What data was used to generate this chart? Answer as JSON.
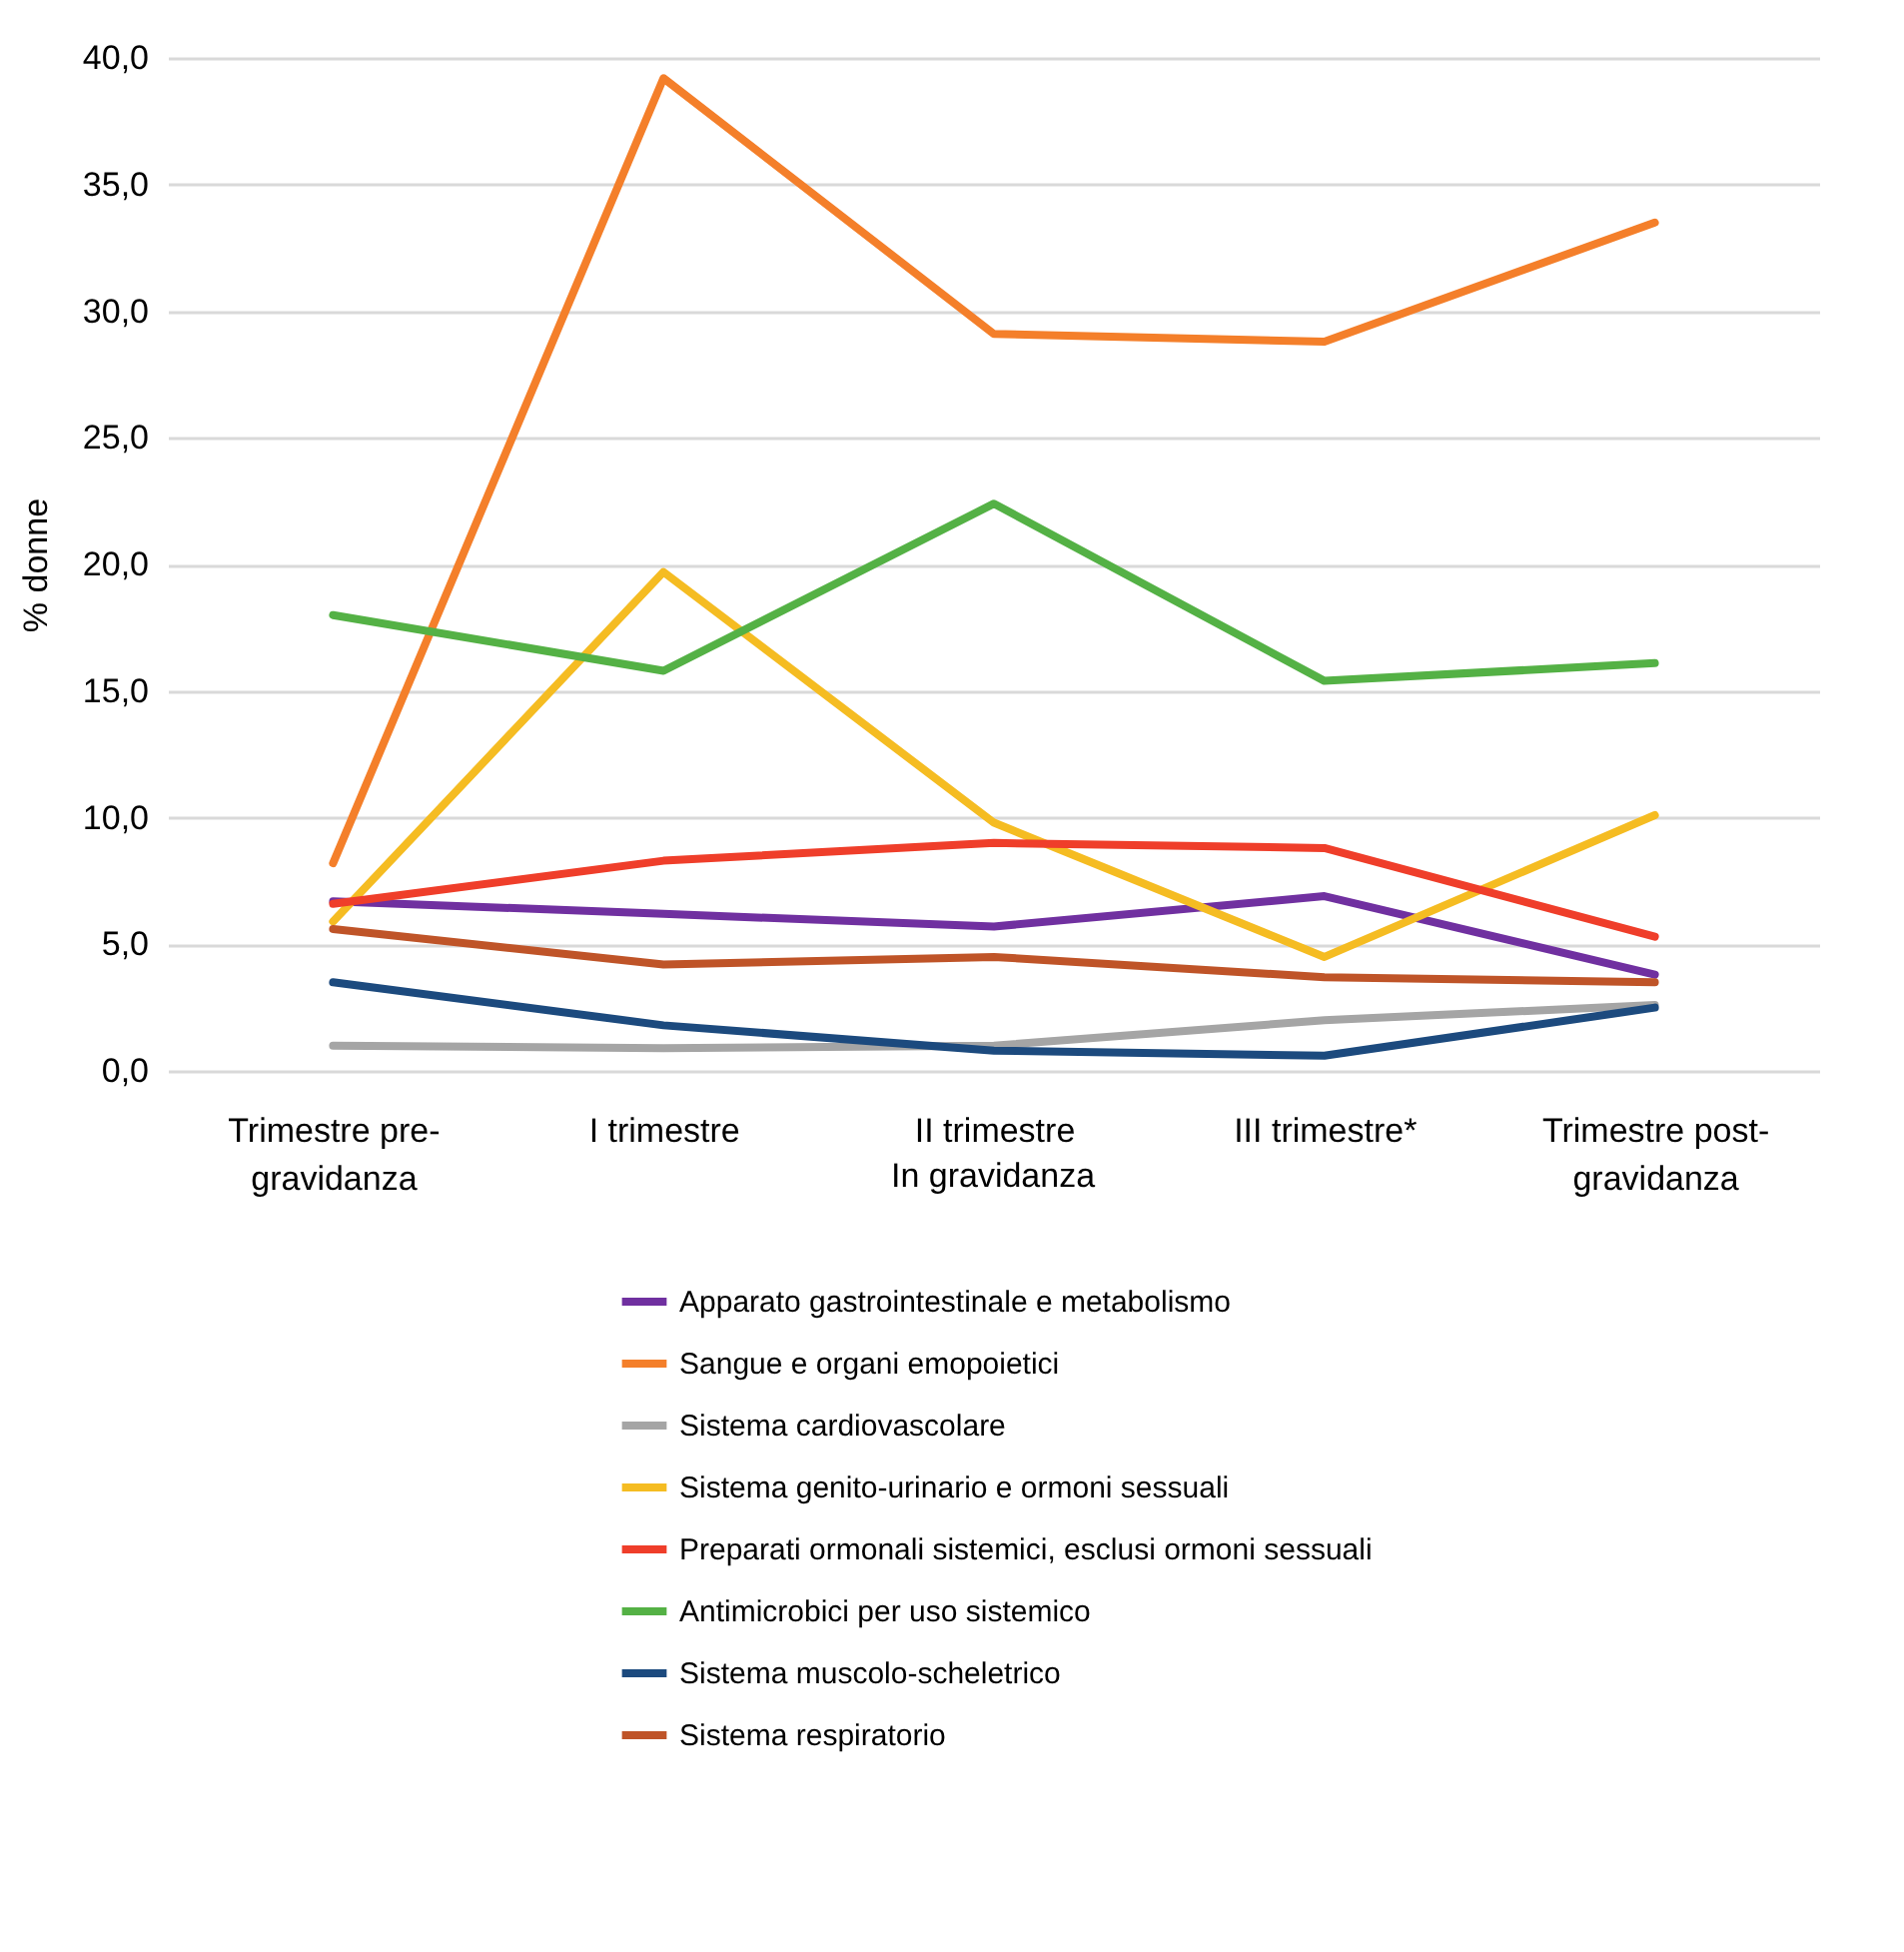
{
  "chart_data": {
    "type": "line",
    "ylabel": "% donne",
    "categories": [
      "Trimestre pre-gravidanza",
      "I trimestre",
      "II trimestre",
      "III trimestre*",
      "Trimestre post-gravidanza"
    ],
    "annotations": [
      "In gravidanza"
    ],
    "ylim": [
      0,
      40
    ],
    "yticks": [
      {
        "value": 0,
        "label": "0,0"
      },
      {
        "value": 5,
        "label": "5,0"
      },
      {
        "value": 10,
        "label": "10,0"
      },
      {
        "value": 15,
        "label": "15,0"
      },
      {
        "value": 20,
        "label": "20,0"
      },
      {
        "value": 25,
        "label": "25,0"
      },
      {
        "value": 30,
        "label": "30,0"
      },
      {
        "value": 35,
        "label": "35,0"
      },
      {
        "value": 40,
        "label": "40,0"
      }
    ],
    "grid": "y",
    "legend": "bottom",
    "marker": "none",
    "line_style": "solid",
    "series": [
      {
        "name": "Apparato gastrointestinale e metabolismo",
        "color": "#7030a0",
        "values": [
          6.7,
          6.2,
          5.7,
          6.9,
          3.8
        ]
      },
      {
        "name": "Sangue e organi emopoietici",
        "color": "#f47f2a",
        "values": [
          8.2,
          39.2,
          29.1,
          28.8,
          33.5
        ]
      },
      {
        "name": "Sistema cardiovascolare",
        "color": "#a5a5a5",
        "values": [
          1.0,
          0.9,
          1.0,
          2.0,
          2.6
        ]
      },
      {
        "name": "Sistema genito-urinario e ormoni sessuali",
        "color": "#f5bc22",
        "values": [
          5.9,
          19.7,
          9.8,
          4.5,
          10.1
        ]
      },
      {
        "name": "Preparati ormonali sistemici, esclusi ormoni sessuali",
        "color": "#ef3e2a",
        "values": [
          6.6,
          8.3,
          9.0,
          8.8,
          5.3
        ]
      },
      {
        "name": " Antimicrobici per uso sistemico",
        "color": "#54b145",
        "values": [
          18.0,
          15.8,
          22.4,
          15.4,
          16.1
        ]
      },
      {
        "name": "Sistema muscolo-scheletrico",
        "color": "#1c4a7e",
        "values": [
          3.5,
          1.8,
          0.8,
          0.6,
          2.5
        ]
      },
      {
        "name": "Sistema respiratorio",
        "color": "#bf5428",
        "values": [
          5.6,
          4.2,
          4.5,
          3.7,
          3.5
        ]
      }
    ]
  }
}
